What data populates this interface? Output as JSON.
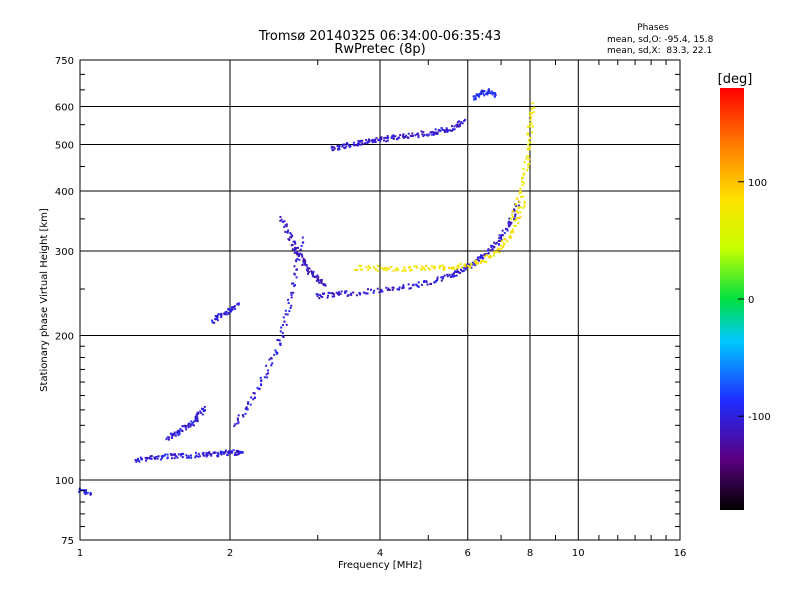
{
  "title_line1": "Tromsø 20140325 06:34:00-06:35:43",
  "title_line2": "RwPretec (8p)",
  "stats": {
    "heading": "Phases",
    "line_o": "mean, sd,O: -95.4, 15.8",
    "line_x": "mean, sd,X:  83.3, 22.1"
  },
  "colorbar": {
    "unit_label": "[deg]",
    "range": [
      -180,
      180
    ],
    "tick_labels": [
      "100",
      "0",
      "-100"
    ],
    "tick_values": [
      100,
      0,
      -100
    ]
  },
  "chart_data": {
    "type": "scatter",
    "xlabel": "Frequency [MHz]",
    "ylabel": "Stationary phase Virtual Height [km]",
    "x_scale": "log",
    "y_scale": "log",
    "xlim": [
      1,
      16
    ],
    "ylim": [
      75,
      750
    ],
    "x_ticks": [
      1,
      2,
      4,
      6,
      8,
      10,
      16
    ],
    "x_tick_labels": [
      "1",
      "2",
      "4",
      "6",
      "8",
      "10",
      "16"
    ],
    "y_ticks": [
      75,
      100,
      200,
      300,
      400,
      500,
      600,
      750
    ],
    "y_tick_labels": [
      "75",
      "100",
      "200",
      "300",
      "400",
      "500",
      "600",
      "750"
    ],
    "grid": true,
    "color_encodes": "phase [deg]",
    "traces": [
      {
        "x": [
          1.3,
          1.38,
          1.5,
          1.6,
          1.75,
          1.85,
          1.95,
          2.05,
          2.12
        ],
        "y": [
          110,
          111,
          112,
          112,
          113,
          113,
          114,
          114,
          114
        ],
        "phase": -100
      },
      {
        "x": [
          1.5,
          1.58,
          1.66,
          1.72,
          1.78
        ],
        "y": [
          122,
          126,
          130,
          135,
          142
        ],
        "phase": -100
      },
      {
        "x": [
          1.85,
          1.92,
          2.0,
          2.08
        ],
        "y": [
          215,
          220,
          226,
          232
        ],
        "phase": -100
      },
      {
        "x": [
          2.05,
          2.2,
          2.35,
          2.5,
          2.6,
          2.7,
          2.8
        ],
        "y": [
          130,
          145,
          165,
          190,
          220,
          265,
          320
        ],
        "phase": -100
      },
      {
        "x": [
          2.55,
          2.65,
          2.72,
          2.8,
          2.9,
          3.0,
          3.1
        ],
        "y": [
          350,
          320,
          300,
          285,
          272,
          262,
          255
        ],
        "phase": -110
      },
      {
        "x": [
          3.0,
          3.2,
          3.5,
          4.0,
          4.5,
          5.0,
          5.5,
          5.8,
          6.1,
          6.4,
          6.7,
          7.0,
          7.3,
          7.6
        ],
        "y": [
          242,
          243,
          245,
          248,
          252,
          258,
          265,
          272,
          280,
          290,
          302,
          320,
          345,
          380
        ],
        "phase": -105
      },
      {
        "x": [
          3.6,
          4.0,
          4.5,
          5.0,
          5.5,
          6.0,
          6.5,
          7.0,
          7.4,
          7.8
        ],
        "y": [
          277,
          276,
          276,
          277,
          277,
          280,
          288,
          305,
          330,
          380
        ],
        "phase": 80
      },
      {
        "x": [
          7.4,
          7.7,
          7.9,
          8.0,
          8.1
        ],
        "y": [
          350,
          400,
          460,
          530,
          610
        ],
        "phase": 75
      },
      {
        "x": [
          3.2,
          3.4,
          3.6,
          3.8,
          4.0,
          4.3,
          4.6,
          5.0,
          5.3,
          5.6,
          5.9
        ],
        "y": [
          490,
          497,
          503,
          507,
          512,
          517,
          522,
          528,
          533,
          540,
          560
        ],
        "phase": -105
      },
      {
        "x": [
          6.2,
          6.4,
          6.6,
          6.8
        ],
        "y": [
          625,
          640,
          645,
          630
        ],
        "phase": -90
      },
      {
        "x": [
          1.0,
          1.05
        ],
        "y": [
          95,
          94
        ],
        "phase": -95
      }
    ]
  }
}
